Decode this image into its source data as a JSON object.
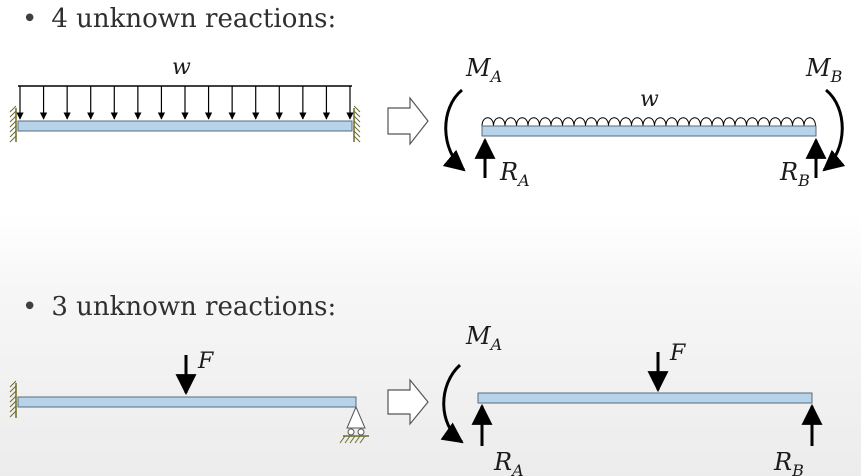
{
  "bullets": [
    {
      "text": "4 unknown reactions:"
    },
    {
      "text": "3 unknown reactions:"
    }
  ],
  "case1": {
    "load_label": "w",
    "fbd_load_label": "w",
    "moment_left": {
      "main": "M",
      "sub": "A"
    },
    "moment_right": {
      "main": "M",
      "sub": "B"
    },
    "reaction_left": {
      "main": "R",
      "sub": "A"
    },
    "reaction_right": {
      "main": "R",
      "sub": "B"
    }
  },
  "case2": {
    "force_label": "F",
    "fbd_force_label": "F",
    "moment_left": {
      "main": "M",
      "sub": "A"
    },
    "reaction_left": {
      "main": "R",
      "sub": "A"
    },
    "reaction_right": {
      "main": "R",
      "sub": "B"
    }
  },
  "colors": {
    "beam": "#b7d3ea",
    "beam_stroke": "#5a6a7a",
    "hatch": "#6b6b2a",
    "arrow": "#000000"
  }
}
